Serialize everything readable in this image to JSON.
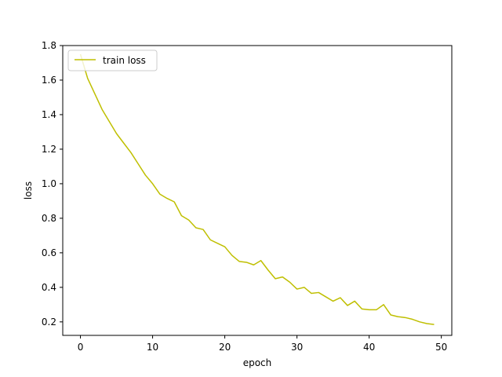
{
  "chart_data": {
    "type": "line",
    "title": "",
    "xlabel": "epoch",
    "ylabel": "loss",
    "xlim": [
      -2.45,
      51.45
    ],
    "ylim": [
      0.1219,
      1.8
    ],
    "xticks": [
      0,
      10,
      20,
      30,
      40,
      50
    ],
    "yticks": [
      0.2,
      0.4,
      0.6,
      0.8,
      1.0,
      1.2,
      1.4,
      1.6,
      1.8
    ],
    "xtick_labels": [
      "0",
      "10",
      "20",
      "30",
      "40",
      "50"
    ],
    "ytick_labels": [
      "0.2",
      "0.4",
      "0.6",
      "0.8",
      "1.0",
      "1.2",
      "1.4",
      "1.6",
      "1.8"
    ],
    "grid": false,
    "legend_position": "upper-left",
    "series": [
      {
        "name": "train loss",
        "color": "#bfbf00",
        "x": [
          0,
          1,
          2,
          3,
          4,
          5,
          6,
          7,
          8,
          9,
          10,
          11,
          12,
          13,
          14,
          15,
          16,
          17,
          18,
          19,
          20,
          21,
          22,
          23,
          24,
          25,
          26,
          27,
          28,
          29,
          30,
          31,
          32,
          33,
          34,
          35,
          36,
          37,
          38,
          39,
          40,
          41,
          42,
          43,
          44,
          45,
          46,
          47,
          48,
          49
        ],
        "y": [
          1.75,
          1.61,
          1.52,
          1.43,
          1.36,
          1.29,
          1.235,
          1.18,
          1.115,
          1.05,
          1.0,
          0.94,
          0.915,
          0.895,
          0.815,
          0.79,
          0.745,
          0.735,
          0.675,
          0.655,
          0.635,
          0.585,
          0.55,
          0.545,
          0.53,
          0.555,
          0.5,
          0.45,
          0.46,
          0.43,
          0.39,
          0.4,
          0.365,
          0.37,
          0.345,
          0.32,
          0.34,
          0.295,
          0.32,
          0.275,
          0.27,
          0.27,
          0.3,
          0.24,
          0.23,
          0.225,
          0.215,
          0.2,
          0.19,
          0.185
        ]
      }
    ]
  }
}
